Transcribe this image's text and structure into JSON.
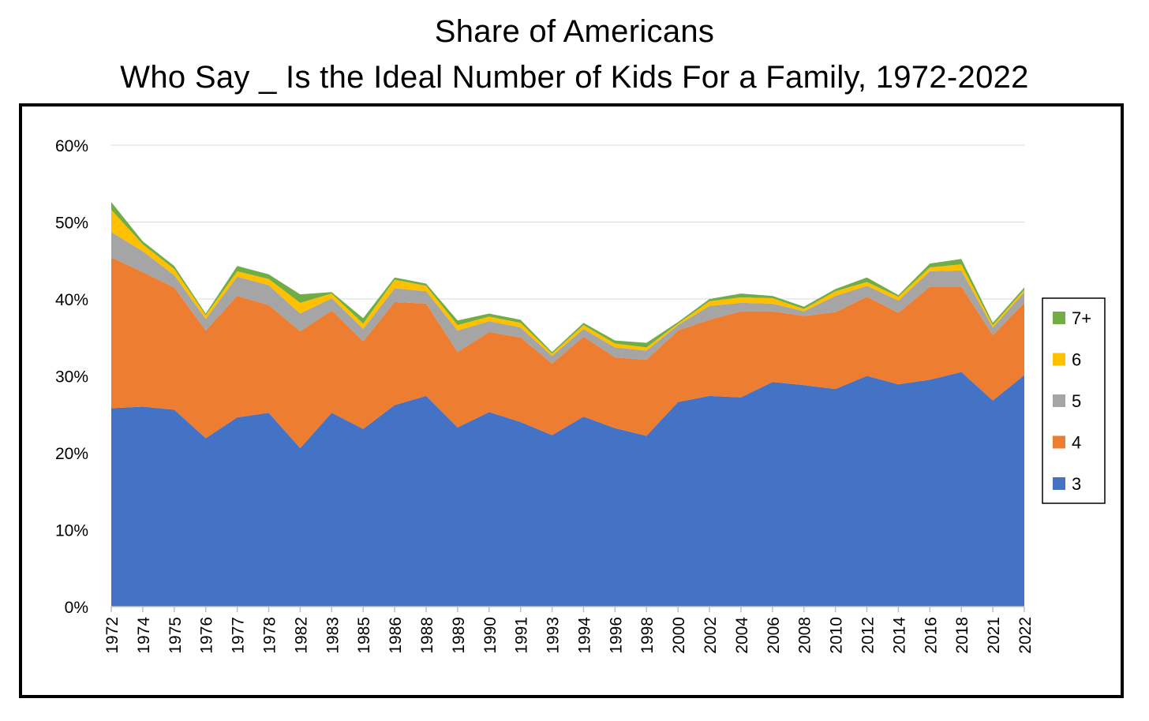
{
  "chart_data": {
    "type": "area",
    "stacked": true,
    "title": "Share of Americans",
    "subtitle": "Who Say _ Is the Ideal Number of Kids For a Family, 1972-2022",
    "xlabel": "",
    "ylabel": "",
    "ylim": [
      0,
      60
    ],
    "yticks": [
      "0%",
      "10%",
      "20%",
      "30%",
      "40%",
      "50%",
      "60%"
    ],
    "grid": true,
    "legend_position": "right",
    "categories": [
      "1972",
      "1974",
      "1975",
      "1976",
      "1977",
      "1978",
      "1982",
      "1983",
      "1985",
      "1986",
      "1988",
      "1989",
      "1990",
      "1991",
      "1993",
      "1994",
      "1996",
      "1998",
      "2000",
      "2002",
      "2004",
      "2006",
      "2008",
      "2010",
      "2012",
      "2014",
      "2016",
      "2018",
      "2021",
      "2022"
    ],
    "series": [
      {
        "name": "3",
        "color": "#4472C4",
        "values": [
          25.8,
          26.0,
          25.6,
          21.9,
          24.6,
          25.2,
          20.6,
          25.2,
          23.1,
          26.2,
          27.4,
          23.3,
          25.3,
          24.0,
          22.3,
          24.7,
          23.2,
          22.2,
          26.6,
          27.4,
          27.2,
          29.2,
          28.8,
          28.3,
          30.0,
          28.9,
          29.5,
          30.5,
          26.8,
          30.1
        ]
      },
      {
        "name": "4",
        "color": "#ED7D31",
        "values": [
          19.6,
          17.5,
          15.9,
          14.0,
          15.8,
          14.0,
          15.2,
          13.3,
          11.4,
          13.4,
          12.0,
          9.8,
          10.4,
          11.0,
          9.3,
          10.4,
          9.2,
          9.9,
          9.3,
          9.9,
          11.2,
          9.2,
          9.0,
          10.0,
          10.3,
          9.3,
          12.1,
          11.1,
          8.5,
          9.4
        ]
      },
      {
        "name": "5",
        "color": "#A5A5A5",
        "values": [
          3.3,
          2.7,
          1.6,
          1.5,
          2.5,
          2.6,
          2.3,
          1.6,
          1.6,
          1.8,
          1.6,
          2.8,
          1.4,
          1.3,
          1.0,
          1.0,
          1.3,
          1.2,
          0.7,
          1.8,
          1.1,
          1.0,
          0.6,
          2.1,
          1.4,
          1.6,
          2.0,
          2.1,
          1.0,
          1.4
        ]
      },
      {
        "name": "6",
        "color": "#FFC000",
        "values": [
          2.9,
          0.9,
          0.8,
          0.5,
          0.7,
          0.8,
          1.4,
          0.6,
          0.7,
          1.1,
          0.7,
          0.7,
          0.6,
          0.6,
          0.3,
          0.5,
          0.5,
          0.4,
          0.2,
          0.6,
          0.7,
          0.7,
          0.3,
          0.6,
          0.5,
          0.5,
          0.5,
          0.8,
          0.3,
          0.3
        ]
      },
      {
        "name": "7+",
        "color": "#70AD47",
        "values": [
          1.0,
          0.4,
          0.4,
          0.2,
          0.7,
          0.6,
          1.1,
          0.2,
          0.7,
          0.3,
          0.3,
          0.6,
          0.4,
          0.4,
          0.2,
          0.3,
          0.4,
          0.6,
          0.2,
          0.3,
          0.5,
          0.3,
          0.3,
          0.3,
          0.6,
          0.2,
          0.5,
          0.7,
          0.3,
          0.3
        ]
      }
    ]
  }
}
